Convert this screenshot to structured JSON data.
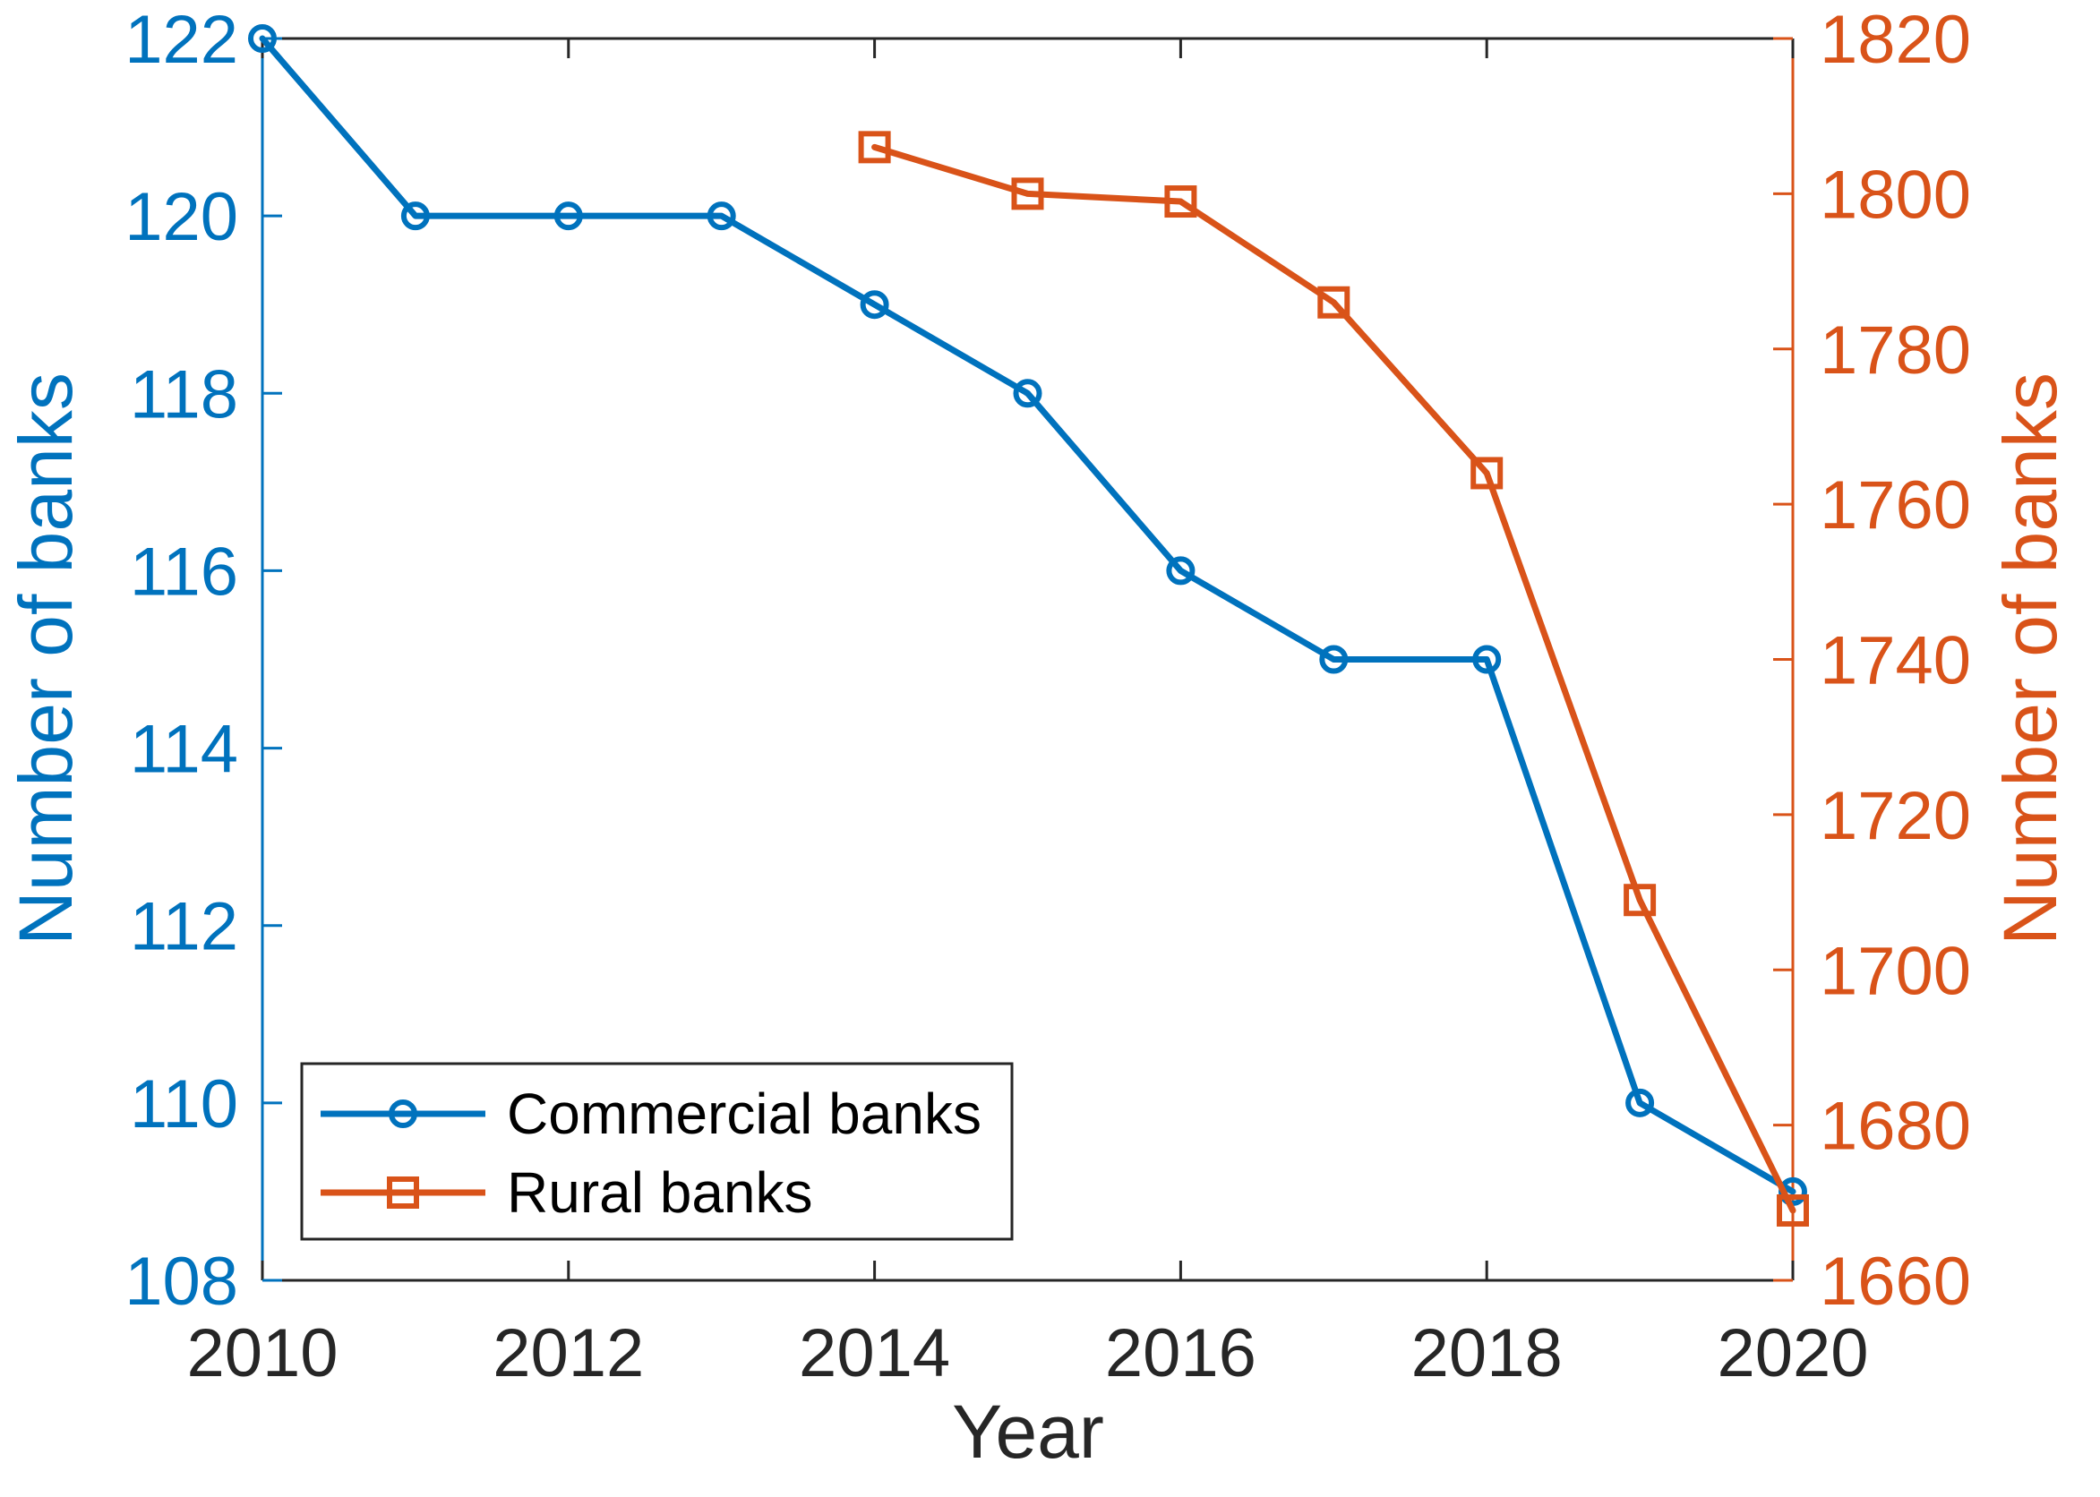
{
  "chart_data": {
    "type": "line",
    "xlabel": "Year",
    "xlim": [
      2010,
      2020
    ],
    "x_ticks": [
      2010,
      2012,
      2014,
      2016,
      2018,
      2020
    ],
    "x_tick_color": "#262626",
    "grid": false,
    "left_axis": {
      "label": "Number of banks",
      "color": "#0072BD",
      "ylim": [
        108,
        122
      ],
      "ticks": [
        108,
        110,
        112,
        114,
        116,
        118,
        120,
        122
      ]
    },
    "right_axis": {
      "label": "Number of banks",
      "color": "#D95319",
      "ylim": [
        1660,
        1820
      ],
      "ticks": [
        1660,
        1680,
        1700,
        1720,
        1740,
        1760,
        1780,
        1800,
        1820
      ]
    },
    "legend": {
      "position": "lower-left",
      "border_color": "#262626",
      "text_color": "#000000"
    },
    "series": [
      {
        "name": "Commercial banks",
        "axis": "left",
        "color": "#0072BD",
        "marker": "circle",
        "x": [
          2010,
          2011,
          2012,
          2013,
          2014,
          2015,
          2016,
          2017,
          2018,
          2019,
          2020
        ],
        "values": [
          122,
          120,
          120,
          120,
          119,
          118,
          116,
          115,
          115,
          110,
          109
        ]
      },
      {
        "name": "Rural banks",
        "axis": "right",
        "color": "#D95319",
        "marker": "square",
        "x": [
          2014,
          2015,
          2016,
          2017,
          2018,
          2019,
          2020
        ],
        "values": [
          1806,
          1800,
          1799,
          1786,
          1764,
          1709,
          1669
        ]
      }
    ]
  }
}
